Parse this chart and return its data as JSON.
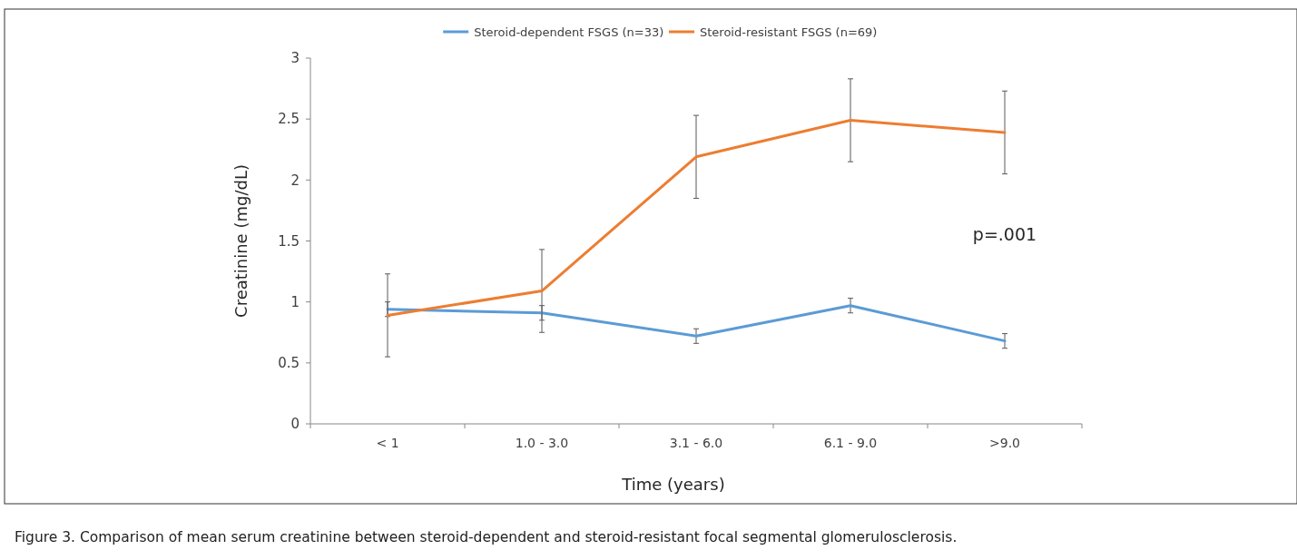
{
  "chart_data": {
    "type": "line",
    "xlabel": "Time (years)",
    "ylabel": "Creatinine (mg/dL)",
    "categories": [
      "< 1",
      "1.0 - 3.0",
      "3.1 - 6.0",
      "6.1 - 9.0",
      ">9.0"
    ],
    "series": [
      {
        "name": "Steroid-dependent FSGS (n=33)",
        "color": "#5b9bd5",
        "values": [
          0.94,
          0.91,
          0.72,
          0.97,
          0.68
        ],
        "errors": [
          0.06,
          0.06,
          0.06,
          0.06,
          0.06
        ]
      },
      {
        "name": "Steroid-resistant FSGS (n=69)",
        "color": "#ed7d31",
        "values": [
          0.89,
          1.09,
          2.19,
          2.49,
          2.39
        ],
        "errors": [
          0.34,
          0.34,
          0.34,
          0.34,
          0.34
        ]
      }
    ],
    "ylim": [
      0,
      3
    ],
    "yticks": [
      0,
      0.5,
      1,
      1.5,
      2,
      2.5,
      3
    ],
    "grid": false,
    "legend": "top",
    "marker": "none",
    "line_style": "solid",
    "annotations": [
      "p=.001",
      "Figure 3.  Comparison of mean serum creatinine between steroid-dependent and steroid-resistant focal segmental glomerulosclerosis."
    ]
  }
}
